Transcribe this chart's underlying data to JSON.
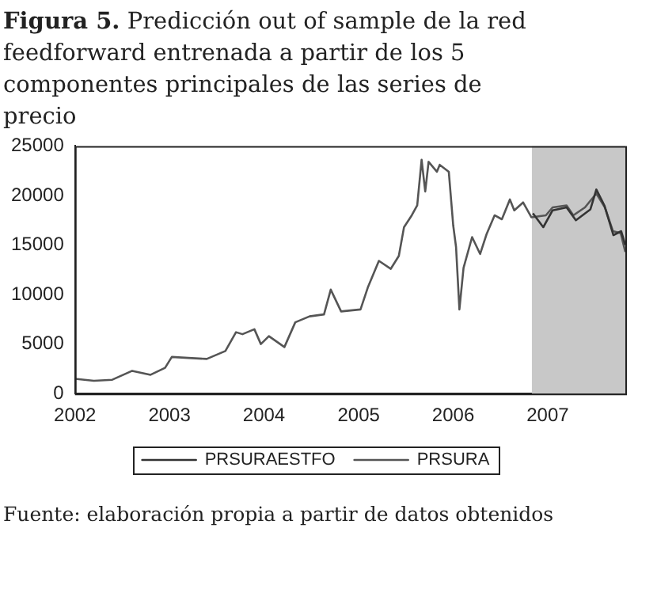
{
  "chart_data": {
    "type": "line",
    "title": "Figura 5. Predicción out of sample de la red feedforward entrenada a partir de los 5 componentes principales de las series de precio",
    "annotations": [
      "Fuente: elaboración propia a partir de datos obtenidos"
    ],
    "xlim": [
      "2002-01-01",
      "2007-10-28"
    ],
    "xticks": [
      {
        "value": "2002-01-01",
        "label": "2002"
      },
      {
        "value": "2003-01-01",
        "label": "2003"
      },
      {
        "value": "2004-01-01",
        "label": "2004"
      },
      {
        "value": "2005-01-01",
        "label": "2005"
      },
      {
        "value": "2006-01-01",
        "label": "2006"
      },
      {
        "value": "2007-01-01",
        "label": "2007"
      }
    ],
    "ylim": [
      0,
      25000
    ],
    "yticks": [
      0,
      5000,
      10000,
      15000,
      20000,
      25000
    ],
    "grid": false,
    "legend": "bottom",
    "marker": "none",
    "line_style": "solid",
    "bands": [
      {
        "axis": "x",
        "from": "2006-11-01",
        "to": "2007-10-28",
        "color": "#c8c8c8"
      }
    ],
    "series": [
      {
        "name": "PRSURAESTFO",
        "color": "#333333",
        "x": [
          "2006-11-05",
          "2006-12-15",
          "2007-01-20",
          "2007-03-15",
          "2007-04-20",
          "2007-06-15",
          "2007-07-08",
          "2007-08-08",
          "2007-09-12",
          "2007-10-12",
          "2007-10-28"
        ],
        "values": [
          18200,
          16800,
          18500,
          18800,
          17500,
          18600,
          20600,
          19000,
          16000,
          16400,
          15000
        ]
      },
      {
        "name": "PRSURA",
        "color": "#555555",
        "x": [
          "2002-01-02",
          "2002-03-15",
          "2002-05-25",
          "2002-08-10",
          "2002-10-20",
          "2002-12-15",
          "2003-01-10",
          "2003-03-15",
          "2003-05-25",
          "2003-08-05",
          "2003-09-15",
          "2003-10-10",
          "2003-11-25",
          "2003-12-20",
          "2004-01-20",
          "2004-03-20",
          "2004-05-01",
          "2004-06-25",
          "2004-08-20",
          "2004-09-15",
          "2004-10-25",
          "2005-01-08",
          "2005-02-05",
          "2005-03-20",
          "2005-05-05",
          "2005-06-05",
          "2005-06-25",
          "2005-07-25",
          "2005-08-15",
          "2005-09-01",
          "2005-09-15",
          "2005-09-28",
          "2005-10-30",
          "2005-11-10",
          "2005-12-15",
          "2006-01-01",
          "2006-01-12",
          "2006-01-25",
          "2006-02-10",
          "2006-03-15",
          "2006-04-15",
          "2006-05-10",
          "2006-06-10",
          "2006-07-08",
          "2006-08-08",
          "2006-08-25",
          "2006-09-28",
          "2006-10-30",
          "2006-12-25",
          "2007-01-20",
          "2007-03-15",
          "2007-04-10",
          "2007-05-25",
          "2007-07-08",
          "2007-08-10",
          "2007-09-10",
          "2007-10-10",
          "2007-10-28"
        ],
        "values": [
          1500,
          1300,
          1400,
          2300,
          1900,
          2600,
          3700,
          3600,
          3500,
          4300,
          6200,
          6000,
          6500,
          5000,
          5800,
          4700,
          7200,
          7800,
          8000,
          10500,
          8300,
          8500,
          10700,
          13400,
          12600,
          13900,
          16800,
          18000,
          19000,
          23600,
          20400,
          23400,
          22400,
          23100,
          22400,
          17000,
          14800,
          8500,
          12700,
          15800,
          14100,
          16100,
          18000,
          17600,
          19600,
          18500,
          19300,
          17800,
          18000,
          18800,
          19000,
          18000,
          18800,
          20200,
          18800,
          16400,
          16200,
          14300
        ]
      }
    ]
  }
}
